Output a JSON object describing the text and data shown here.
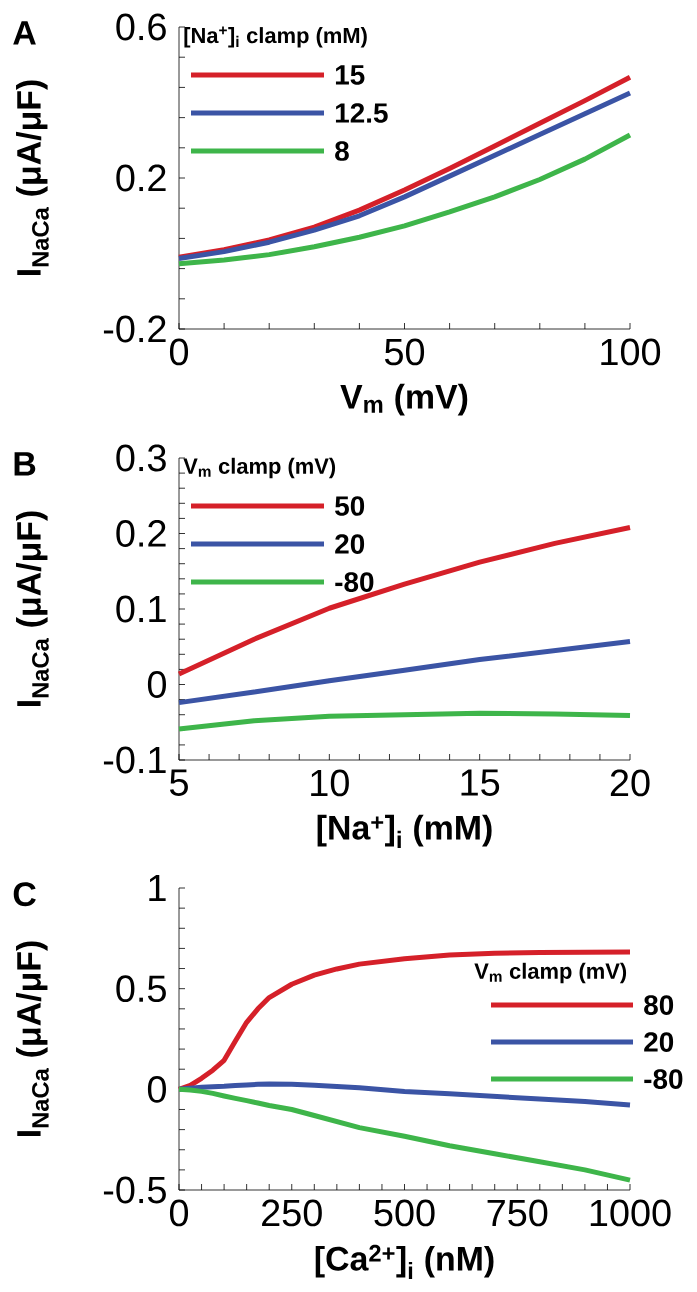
{
  "chart_data": [
    {
      "type": "line",
      "annotations": [
        "A"
      ],
      "xlabel": "V$_{m}$ (mV)",
      "ylabel": "I$_{NaCa}$ (μA/μF)",
      "legend_title": "[Na$^{+}$]$_{i}$ clamp (mM)",
      "legend": "top left",
      "x": [
        0,
        10,
        20,
        30,
        40,
        50,
        60,
        70,
        80,
        90,
        100
      ],
      "series": [
        {
          "name": "15",
          "color": "#d52029",
          "values": [
            -0.01,
            0.01,
            0.036,
            0.07,
            0.115,
            0.168,
            0.225,
            0.285,
            0.345,
            0.405,
            0.467
          ]
        },
        {
          "name": "12.5",
          "color": "#3b54a5",
          "values": [
            -0.013,
            0.005,
            0.03,
            0.062,
            0.1,
            0.15,
            0.205,
            0.26,
            0.315,
            0.37,
            0.425
          ]
        },
        {
          "name": "8",
          "color": "#3eb54a",
          "values": [
            -0.027,
            -0.017,
            -0.003,
            0.018,
            0.043,
            0.073,
            0.11,
            0.15,
            0.196,
            0.25,
            0.314
          ]
        }
      ],
      "xlim": [
        0,
        100
      ],
      "ylim": [
        -0.2,
        0.6
      ],
      "xticks": [
        0,
        {
          "value": 10,
          "label": null
        },
        {
          "value": 20,
          "label": null
        },
        {
          "value": 30,
          "label": null
        },
        {
          "value": 40,
          "label": null
        },
        50,
        {
          "value": 60,
          "label": null
        },
        {
          "value": 70,
          "label": null
        },
        {
          "value": 80,
          "label": null
        },
        {
          "value": 90,
          "label": null
        },
        100
      ],
      "yticks": [
        -0.2,
        {
          "value": -0.12,
          "label": null
        },
        {
          "value": -0.04,
          "label": null
        },
        {
          "value": 0.04,
          "label": null
        },
        {
          "value": 0.12,
          "label": null
        },
        0.2,
        {
          "value": 0.28,
          "label": null
        },
        {
          "value": 0.36,
          "label": null
        },
        {
          "value": 0.44,
          "label": null
        },
        {
          "value": 0.52,
          "label": null
        },
        0.6
      ]
    },
    {
      "type": "line",
      "annotations": [
        "B"
      ],
      "xlabel": "[Na$^{+}$]$_{i}$ (mM)",
      "ylabel": "I$_{NaCa}$ (μA/μF)",
      "legend_title": "V$_{m}$ clamp (mV)",
      "legend": "top left",
      "x": [
        5,
        7.5,
        10,
        12.5,
        15,
        17.5,
        20
      ],
      "series": [
        {
          "name": "50",
          "color": "#d52029",
          "values": [
            0.014,
            0.06,
            0.101,
            0.133,
            0.162,
            0.187,
            0.208
          ]
        },
        {
          "name": "20",
          "color": "#3b54a5",
          "values": [
            -0.024,
            -0.01,
            0.005,
            0.019,
            0.033,
            0.045,
            0.057
          ]
        },
        {
          "name": "-80",
          "color": "#3eb54a",
          "values": [
            -0.059,
            -0.048,
            -0.042,
            -0.04,
            -0.038,
            -0.039,
            -0.041
          ]
        }
      ],
      "xlim": [
        5,
        20
      ],
      "ylim": [
        -0.1,
        0.3
      ],
      "xticks": [
        5,
        {
          "value": 6,
          "label": null
        },
        {
          "value": 7,
          "label": null
        },
        {
          "value": 8,
          "label": null
        },
        {
          "value": 9,
          "label": null
        },
        10,
        {
          "value": 11,
          "label": null
        },
        {
          "value": 12,
          "label": null
        },
        {
          "value": 13,
          "label": null
        },
        {
          "value": 14,
          "label": null
        },
        15,
        {
          "value": 16,
          "label": null
        },
        {
          "value": 17,
          "label": null
        },
        {
          "value": 18,
          "label": null
        },
        {
          "value": 19,
          "label": null
        },
        20
      ],
      "yticks": [
        -0.1,
        {
          "value": -0.08,
          "label": null
        },
        {
          "value": -0.06,
          "label": null
        },
        {
          "value": -0.04,
          "label": null
        },
        {
          "value": -0.02,
          "label": null
        },
        0,
        {
          "value": 0.02,
          "label": null
        },
        {
          "value": 0.04,
          "label": null
        },
        {
          "value": 0.06,
          "label": null
        },
        {
          "value": 0.08,
          "label": null
        },
        0.1,
        {
          "value": 0.12,
          "label": null
        },
        {
          "value": 0.14,
          "label": null
        },
        {
          "value": 0.16,
          "label": null
        },
        {
          "value": 0.18,
          "label": null
        },
        0.2,
        {
          "value": 0.22,
          "label": null
        },
        {
          "value": 0.24,
          "label": null
        },
        {
          "value": 0.26,
          "label": null
        },
        {
          "value": 0.28,
          "label": null
        },
        0.3
      ]
    },
    {
      "type": "line",
      "annotations": [
        "C"
      ],
      "xlabel": "[Ca$^{2+}$]$_{i}$ (nM)",
      "ylabel": "I$_{NaCa}$ (μA/μF)",
      "legend_title": "V$_{m}$ clamp (mV)",
      "legend": "right",
      "x": [
        0,
        25,
        50,
        75,
        100,
        125,
        150,
        175,
        200,
        250,
        300,
        350,
        400,
        500,
        600,
        700,
        800,
        900,
        1000
      ],
      "series": [
        {
          "name": "80",
          "color": "#d52029",
          "values": [
            0,
            0.02,
            0.055,
            0.095,
            0.144,
            0.24,
            0.333,
            0.4,
            0.456,
            0.522,
            0.567,
            0.598,
            0.622,
            0.649,
            0.667,
            0.676,
            0.68,
            0.681,
            0.682
          ]
        },
        {
          "name": "20",
          "color": "#3b54a5",
          "values": [
            0,
            0.005,
            0.01,
            0.013,
            0.015,
            0.019,
            0.022,
            0.025,
            0.027,
            0.025,
            0.02,
            0.014,
            0.008,
            -0.011,
            -0.022,
            -0.035,
            -0.048,
            -0.06,
            -0.078
          ]
        },
        {
          "name": "-80",
          "color": "#3eb54a",
          "values": [
            0,
            -0.003,
            -0.01,
            -0.02,
            -0.033,
            -0.045,
            -0.056,
            -0.068,
            -0.08,
            -0.1,
            -0.13,
            -0.16,
            -0.19,
            -0.233,
            -0.28,
            -0.32,
            -0.36,
            -0.4,
            -0.451
          ]
        }
      ],
      "xlim": [
        0,
        1000
      ],
      "ylim": [
        -0.5,
        1
      ],
      "xticks": [
        0,
        {
          "value": 50,
          "label": null
        },
        {
          "value": 100,
          "label": null
        },
        {
          "value": 150,
          "label": null
        },
        {
          "value": 200,
          "label": null
        },
        250,
        {
          "value": 300,
          "label": null
        },
        {
          "value": 350,
          "label": null
        },
        {
          "value": 400,
          "label": null
        },
        {
          "value": 450,
          "label": null
        },
        500,
        {
          "value": 550,
          "label": null
        },
        {
          "value": 600,
          "label": null
        },
        {
          "value": 650,
          "label": null
        },
        {
          "value": 700,
          "label": null
        },
        750,
        {
          "value": 800,
          "label": null
        },
        {
          "value": 850,
          "label": null
        },
        {
          "value": 900,
          "label": null
        },
        {
          "value": 950,
          "label": null
        },
        1000
      ],
      "yticks": [
        -0.5,
        {
          "value": -0.4,
          "label": null
        },
        {
          "value": -0.3,
          "label": null
        },
        {
          "value": -0.2,
          "label": null
        },
        {
          "value": -0.1,
          "label": null
        },
        0,
        {
          "value": 0.1,
          "label": null
        },
        {
          "value": 0.2,
          "label": null
        },
        {
          "value": 0.3,
          "label": null
        },
        {
          "value": 0.4,
          "label": null
        },
        0.5,
        {
          "value": 0.6,
          "label": null
        },
        {
          "value": 0.7,
          "label": null
        },
        {
          "value": 0.8,
          "label": null
        },
        {
          "value": 0.9,
          "label": null
        },
        1
      ]
    }
  ]
}
